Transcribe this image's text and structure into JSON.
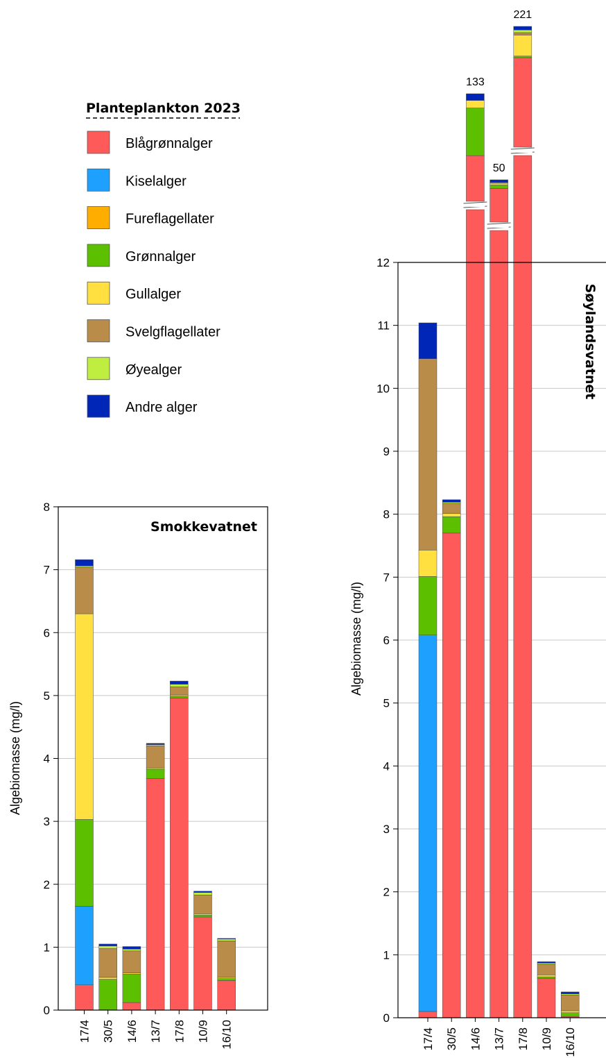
{
  "legend": {
    "title": "Planteplankton 2023",
    "items": [
      {
        "key": "blagronnalger",
        "label": "Blågrønnalger",
        "color": "#ff5a5a"
      },
      {
        "key": "kiselalger",
        "label": "Kiselalger",
        "color": "#1ea0ff"
      },
      {
        "key": "fureflagellater",
        "label": "Fureflagellater",
        "color": "#ffae00"
      },
      {
        "key": "gronnalger",
        "label": "Grønnalger",
        "color": "#5cbf00"
      },
      {
        "key": "gullalger",
        "label": "Gullalger",
        "color": "#ffe040"
      },
      {
        "key": "svelgflagellater",
        "label": "Svelgflagellater",
        "color": "#b98c4a"
      },
      {
        "key": "oyealger",
        "label": "Øyealger",
        "color": "#bfee40"
      },
      {
        "key": "andre",
        "label": "Andre alger",
        "color": "#0026b8"
      }
    ]
  },
  "chart_data": [
    {
      "type": "bar",
      "stacked": true,
      "title": "Smokkevatnet",
      "ylabel": "Algebiomasse (mg/l)",
      "ylim": [
        0,
        8
      ],
      "yticks": [
        0,
        1,
        2,
        3,
        4,
        5,
        6,
        7,
        8
      ],
      "grid": true,
      "categories": [
        "17/4",
        "30/5",
        "14/6",
        "13/7",
        "17/8",
        "10/9",
        "16/10"
      ],
      "series": [
        {
          "name": "Blågrønnalger",
          "values": [
            0.4,
            0.0,
            0.12,
            3.68,
            4.96,
            1.48,
            0.47
          ]
        },
        {
          "name": "Kiselalger",
          "values": [
            1.25,
            0.0,
            0.0,
            0.0,
            0.0,
            0.0,
            0.0
          ]
        },
        {
          "name": "Fureflagellater",
          "values": [
            0.0,
            0.0,
            0.0,
            0.0,
            0.0,
            0.0,
            0.0
          ]
        },
        {
          "name": "Grønnalger",
          "values": [
            1.38,
            0.49,
            0.45,
            0.15,
            0.03,
            0.03,
            0.03
          ]
        },
        {
          "name": "Gullalger",
          "values": [
            3.27,
            0.03,
            0.02,
            0.02,
            0.02,
            0.02,
            0.02
          ]
        },
        {
          "name": "Svelgflagellater",
          "values": [
            0.74,
            0.46,
            0.35,
            0.35,
            0.13,
            0.3,
            0.58
          ]
        },
        {
          "name": "Øyealger",
          "values": [
            0.02,
            0.04,
            0.03,
            0.02,
            0.04,
            0.04,
            0.03
          ]
        },
        {
          "name": "Andre alger",
          "values": [
            0.1,
            0.03,
            0.04,
            0.02,
            0.05,
            0.02,
            0.01
          ]
        }
      ]
    },
    {
      "type": "bar",
      "stacked": true,
      "title": "Søylandsvatnet",
      "ylabel": "Algebiomasse (mg/l)",
      "ylim": [
        0,
        12
      ],
      "yticks": [
        0,
        1,
        2,
        3,
        4,
        5,
        6,
        7,
        8,
        9,
        10,
        11,
        12
      ],
      "grid": true,
      "axis_break": true,
      "categories": [
        "17/4",
        "30/5",
        "14/6",
        "13/7",
        "17/8",
        "10/9",
        "16/10"
      ],
      "totals_above_break": [
        null,
        null,
        133,
        50,
        221,
        null,
        null
      ],
      "series": [
        {
          "name": "Blågrønnalger",
          "values": [
            0.1,
            7.7,
            120.0,
            49.0,
            215.0,
            0.62,
            0.02
          ]
        },
        {
          "name": "Kiselalger",
          "values": [
            5.98,
            0.0,
            0.0,
            0.0,
            0.0,
            0.0,
            0.0
          ]
        },
        {
          "name": "Fureflagellater",
          "values": [
            0.0,
            0.0,
            0.0,
            0.0,
            0.0,
            0.0,
            0.0
          ]
        },
        {
          "name": "Grønnalger",
          "values": [
            0.93,
            0.26,
            10.0,
            0.4,
            0.3,
            0.03,
            0.06
          ]
        },
        {
          "name": "Gullalger",
          "values": [
            0.42,
            0.05,
            1.6,
            0.2,
            4.0,
            0.03,
            0.03
          ]
        },
        {
          "name": "Svelgflagellater",
          "values": [
            3.04,
            0.16,
            0.0,
            0.1,
            0.5,
            0.17,
            0.25
          ]
        },
        {
          "name": "Øyealger",
          "values": [
            0.0,
            0.02,
            0.0,
            0.0,
            0.5,
            0.02,
            0.02
          ]
        },
        {
          "name": "Andre alger",
          "values": [
            0.57,
            0.04,
            1.4,
            0.3,
            0.7,
            0.02,
            0.03
          ]
        }
      ]
    }
  ]
}
